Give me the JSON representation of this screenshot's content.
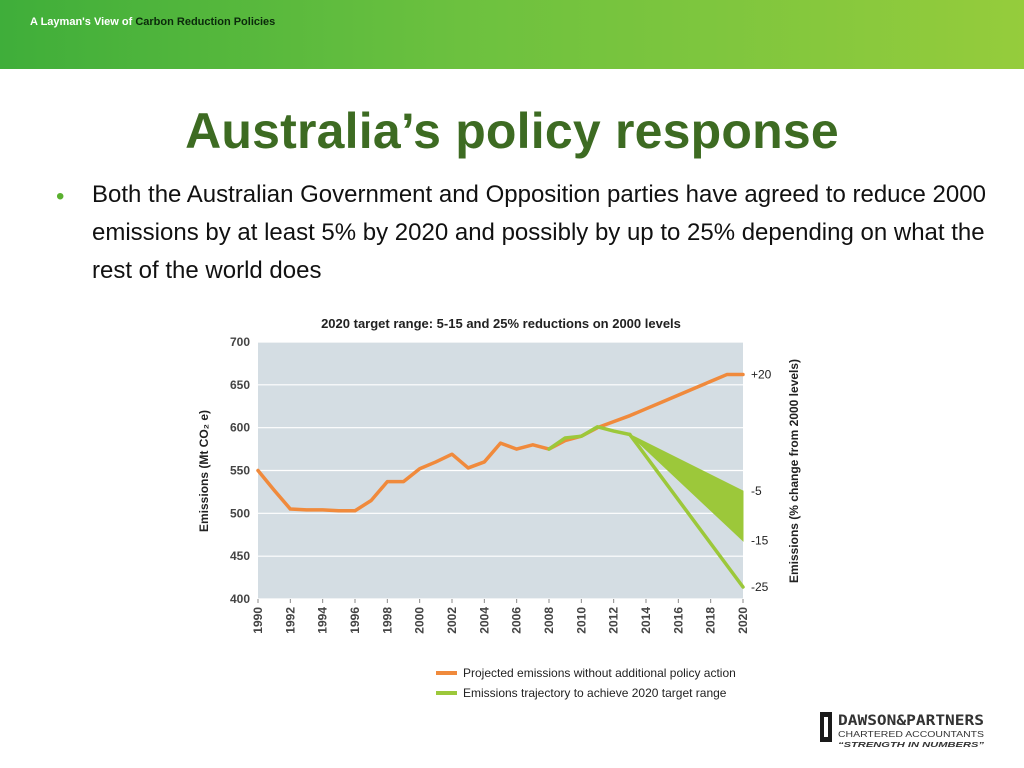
{
  "header": {
    "prefix": "A Layman's View of",
    "subject": "Carbon Reduction Policies"
  },
  "slide": {
    "title": "Australia’s policy response",
    "bullets": [
      "Both the Australian Government and Opposition parties have agreed to reduce 2000 emissions by at least 5% by 2020 and possibly by up to 25% depending on what the rest of the world does"
    ]
  },
  "colors": {
    "banner": "#6cc13f",
    "title": "#3d6b22",
    "projected": "#f08a3c",
    "target": "#9cc83a",
    "plot_bg": "#d4dde3"
  },
  "logo": {
    "name": "DAWSON&PARTNERS",
    "line2": "CHARTERED ACCOUNTANTS",
    "tagline": "“STRENGTH IN NUMBERS”"
  },
  "chart_data": {
    "type": "line",
    "title": "2020 target range: 5-15 and 25% reductions on 2000 levels",
    "ylabel": "Emissions (Mt CO₂ e)",
    "y2label": "Emissions (% change from 2000 levels)",
    "ylim": [
      400,
      700
    ],
    "yticks": [
      400,
      450,
      500,
      550,
      600,
      650,
      700
    ],
    "xlim": [
      1990,
      2020
    ],
    "xticks": [
      1990,
      1992,
      1994,
      1996,
      1998,
      2000,
      2002,
      2004,
      2006,
      2008,
      2010,
      2012,
      2014,
      2016,
      2018,
      2020
    ],
    "right_labels": [
      {
        "text": "+20",
        "y": 662
      },
      {
        "text": "-5",
        "y": 526
      },
      {
        "text": "-15",
        "y": 468
      },
      {
        "text": "-25",
        "y": 414
      }
    ],
    "grid": true,
    "legend_position": "bottom",
    "series": [
      {
        "name": "Projected emissions without additional policy action",
        "color": "#f08a3c",
        "x": [
          1990,
          1991,
          1992,
          1993,
          1994,
          1995,
          1996,
          1997,
          1998,
          1999,
          2000,
          2001,
          2002,
          2003,
          2004,
          2005,
          2006,
          2007,
          2008,
          2009,
          2010,
          2011,
          2012,
          2013,
          2014,
          2015,
          2016,
          2017,
          2018,
          2019,
          2020
        ],
        "y": [
          550,
          527,
          505,
          504,
          504,
          503,
          503,
          515,
          537,
          537,
          552,
          560,
          569,
          553,
          560,
          582,
          575,
          580,
          575,
          585,
          590,
          600,
          607,
          614,
          622,
          630,
          638,
          646,
          654,
          662,
          662
        ]
      },
      {
        "name": "Emissions trajectory to achieve 2020 target range",
        "color": "#9cc83a",
        "x": [
          2008,
          2009,
          2010,
          2011,
          2012,
          2013
        ],
        "y": [
          575,
          588,
          590,
          601,
          596,
          592
        ],
        "fan": {
          "x0": 2013,
          "y0": 592,
          "x1": 2020,
          "upper": 526,
          "lower": 468,
          "deep": 414
        }
      }
    ]
  }
}
